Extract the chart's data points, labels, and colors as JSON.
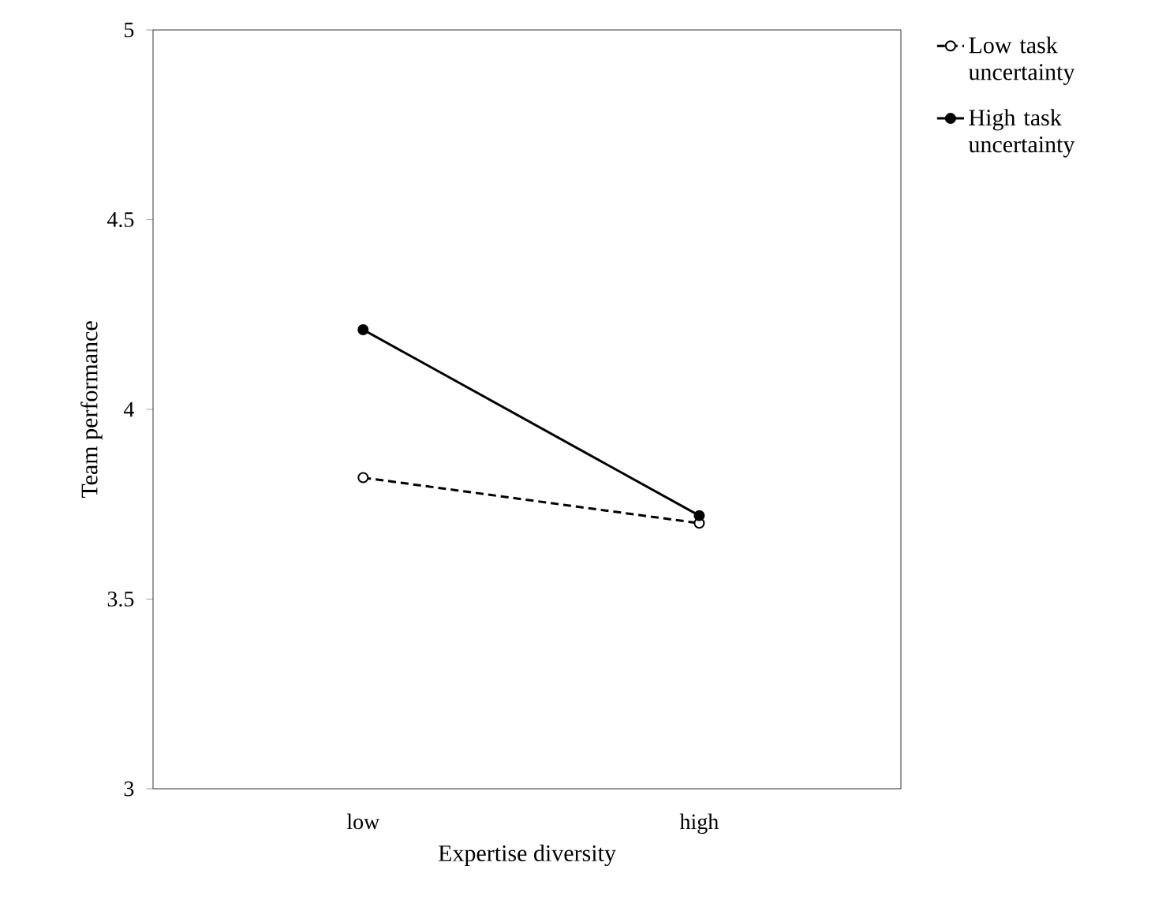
{
  "chart_data": {
    "type": "line",
    "xlabel": "Expertise diversity",
    "ylabel": "Team performance",
    "categories": [
      "low",
      "high"
    ],
    "ylim": [
      3,
      5
    ],
    "yticks": [
      3,
      3.5,
      4,
      4.5,
      5
    ],
    "legend": "top right",
    "grid": false,
    "marker": "circle",
    "series": [
      {
        "name": "Low task uncertainty",
        "color": "#000000",
        "line_style": "dashed",
        "values": [
          3.82,
          3.7
        ]
      },
      {
        "name": "High task uncertainty",
        "color": "#000000",
        "line_style": "solid",
        "values": [
          4.21,
          3.72
        ]
      }
    ]
  }
}
